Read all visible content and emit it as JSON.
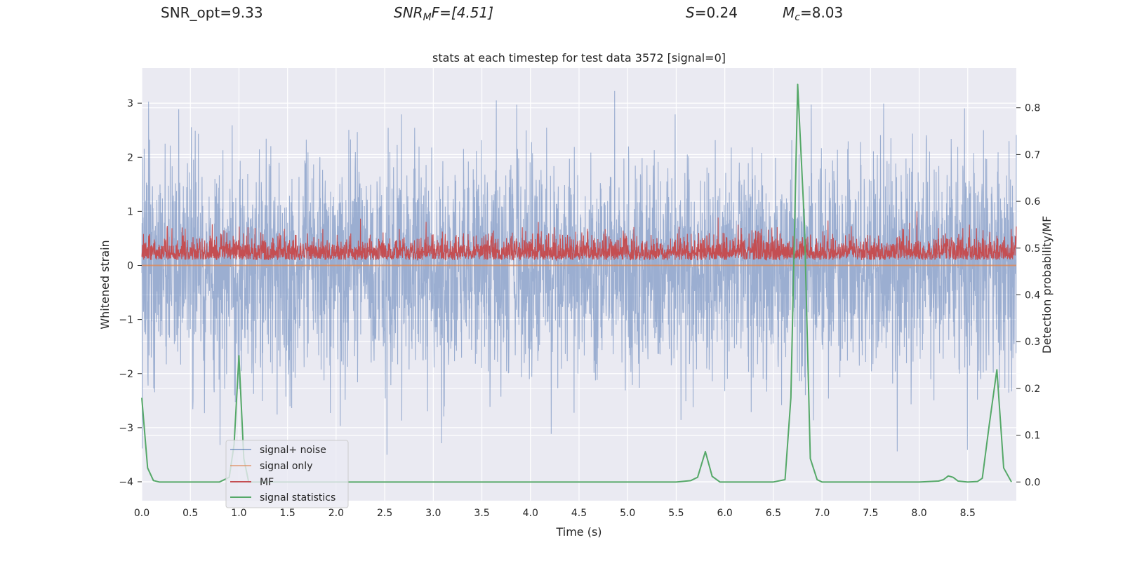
{
  "header": {
    "snr_opt": "SNR_opt=9.33",
    "snr_mf_main": "SNR",
    "snr_mf_sub": "M",
    "snr_mf_rest": "F=[4.51]",
    "s_var": "S",
    "s_val": "=0.24",
    "mc_var": "M",
    "mc_sub": "c",
    "mc_val": "=8.03"
  },
  "colors": {
    "background": "#eaeaf2",
    "grid": "#ffffff",
    "signal_noise": "#4c72b0",
    "signal_only": "#dd8452",
    "mf": "#c44e52",
    "stats": "#55a868"
  },
  "chart_data": {
    "type": "line",
    "title": "stats at each timestep for test data 3572 [signal=0]",
    "xlabel": "Time (s)",
    "ylabel": "Whitened strain",
    "y2label": "Detection probability/MF",
    "xlim": [
      0.0,
      9.0
    ],
    "ylim": [
      -4.35,
      3.65
    ],
    "y2lim": [
      -0.04,
      0.885
    ],
    "xticks": [
      "0.0",
      "0.5",
      "1.0",
      "1.5",
      "2.0",
      "2.5",
      "3.0",
      "3.5",
      "4.0",
      "4.5",
      "5.0",
      "5.5",
      "6.0",
      "6.5",
      "7.0",
      "7.5",
      "8.0",
      "8.5"
    ],
    "yticks": [
      "3",
      "2",
      "1",
      "0",
      "−1",
      "−2",
      "−3",
      "−4"
    ],
    "y2ticks": [
      "0.8",
      "0.7",
      "0.6",
      "0.5",
      "0.4",
      "0.3",
      "0.2",
      "0.1",
      "0.0"
    ],
    "legend_position": "lower-left",
    "legend": [
      "signal+ noise",
      "signal only",
      "MF",
      "signal statistics"
    ],
    "series": [
      {
        "name": "signal+ noise",
        "axis": "left",
        "kind": "noise",
        "mean": 0.0,
        "std": 1.0,
        "min": -3.5,
        "max": 3.3
      },
      {
        "name": "signal only",
        "axis": "left",
        "x": [
          0.0,
          9.0
        ],
        "y": [
          0.0,
          0.0
        ]
      },
      {
        "name": "MF",
        "axis": "left",
        "kind": "mf",
        "baseline": 0.1,
        "peak": 1.0
      },
      {
        "name": "signal statistics",
        "axis": "right",
        "x": [
          0.0,
          0.06,
          0.12,
          0.18,
          0.3,
          0.6,
          0.8,
          0.9,
          0.95,
          1.0,
          1.05,
          1.1,
          1.2,
          1.5,
          2.0,
          3.0,
          4.0,
          5.0,
          5.5,
          5.65,
          5.72,
          5.8,
          5.87,
          5.95,
          6.0,
          6.2,
          6.5,
          6.62,
          6.68,
          6.75,
          6.82,
          6.88,
          6.95,
          7.0,
          7.5,
          8.0,
          8.2,
          8.25,
          8.3,
          8.35,
          8.4,
          8.5,
          8.6,
          8.65,
          8.72,
          8.8,
          8.87,
          8.95
        ],
        "y": [
          0.18,
          0.03,
          0.003,
          0.0,
          0.0,
          0.0,
          0.0,
          0.01,
          0.08,
          0.27,
          0.05,
          0.0,
          0.0,
          0.0,
          0.0,
          0.0,
          0.0,
          0.0,
          0.0,
          0.003,
          0.01,
          0.065,
          0.012,
          0.0,
          0.0,
          0.0,
          0.0,
          0.005,
          0.18,
          0.85,
          0.55,
          0.05,
          0.005,
          0.0,
          0.0,
          0.0,
          0.002,
          0.005,
          0.013,
          0.01,
          0.002,
          0.0,
          0.001,
          0.008,
          0.12,
          0.24,
          0.03,
          0.0
        ]
      }
    ]
  }
}
